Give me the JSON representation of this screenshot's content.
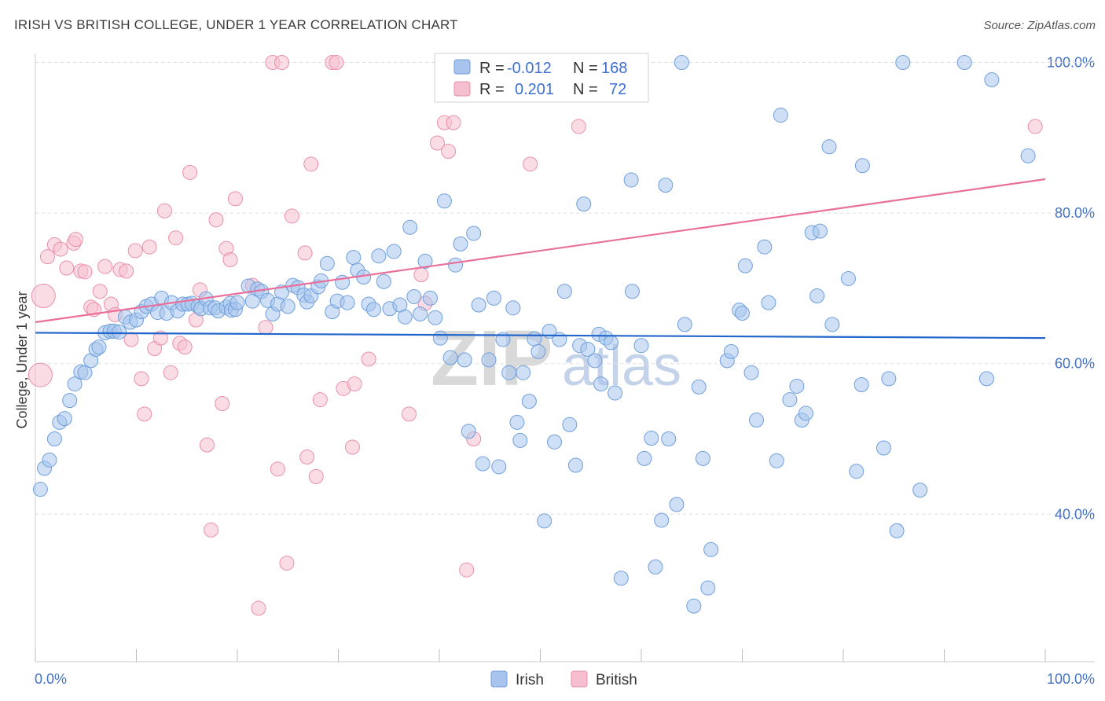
{
  "title": "IRISH VS BRITISH COLLEGE, UNDER 1 YEAR CORRELATION CHART",
  "source": "Source: ZipAtlas.com",
  "watermark": {
    "zip": "ZIP",
    "atlas": "atlas"
  },
  "legend": {
    "irish": {
      "r_label": "R =",
      "r_value": "-0.012",
      "n_label": "N =",
      "n_value": "168"
    },
    "british": {
      "r_label": "R =",
      "r_value": "0.201",
      "n_label": "N =",
      "n_value": "72"
    }
  },
  "bottom_legend": {
    "irish": "Irish",
    "british": "British"
  },
  "colors": {
    "irish_fill": "#a8c4ec",
    "irish_stroke": "#6f9fdc",
    "irish_line": "#2266cc",
    "british_fill": "#f5bfd0",
    "british_stroke": "#ea8faa",
    "british_line": "#e8709a",
    "tick_text": "#4472c4",
    "grid": "#dddddd"
  },
  "chart_data": {
    "type": "scatter",
    "title": "IRISH VS BRITISH COLLEGE, UNDER 1 YEAR CORRELATION CHART",
    "ylabel": "College, Under 1 year",
    "xlabel": "",
    "xlim": [
      0,
      100
    ],
    "ylim": [
      22,
      102
    ],
    "x_tick_labels": [
      "0.0%",
      "100.0%"
    ],
    "y_ticks": [
      40,
      60,
      80,
      100
    ],
    "y_tick_labels": [
      "40.0%",
      "60.0%",
      "80.0%",
      "100.0%"
    ],
    "grid": "horizontal dashed",
    "legend_position": "top-center",
    "series": [
      {
        "name": "Irish",
        "r": -0.012,
        "n": 168,
        "trend": {
          "x": [
            0,
            100
          ],
          "y": [
            64.1,
            63.4
          ]
        },
        "points": [
          [
            0.5,
            43.3
          ],
          [
            0.9,
            46.1
          ],
          [
            1.4,
            47.2
          ],
          [
            1.9,
            50.0
          ],
          [
            2.4,
            52.2
          ],
          [
            2.9,
            52.7
          ],
          [
            3.4,
            55.1
          ],
          [
            3.9,
            57.3
          ],
          [
            4.5,
            58.9
          ],
          [
            4.9,
            58.8
          ],
          [
            5.5,
            60.4
          ],
          [
            6.0,
            61.9
          ],
          [
            6.3,
            62.2
          ],
          [
            6.9,
            64.1
          ],
          [
            7.4,
            64.3
          ],
          [
            7.8,
            64.3
          ],
          [
            8.3,
            64.2
          ],
          [
            8.9,
            66.2
          ],
          [
            9.4,
            65.5
          ],
          [
            10.0,
            65.8
          ],
          [
            10.5,
            66.9
          ],
          [
            11.0,
            67.6
          ],
          [
            11.5,
            67.9
          ],
          [
            12.1,
            66.8
          ],
          [
            12.5,
            68.7
          ],
          [
            13.0,
            66.7
          ],
          [
            13.5,
            68.1
          ],
          [
            14.1,
            67.0
          ],
          [
            14.6,
            67.9
          ],
          [
            15.1,
            67.9
          ],
          [
            15.5,
            68.0
          ],
          [
            16.1,
            67.6
          ],
          [
            16.4,
            67.3
          ],
          [
            16.9,
            68.6
          ],
          [
            17.3,
            67.4
          ],
          [
            17.8,
            67.4
          ],
          [
            18.1,
            67.0
          ],
          [
            18.9,
            67.5
          ],
          [
            19.3,
            68.0
          ],
          [
            19.4,
            67.1
          ],
          [
            19.8,
            67.2
          ],
          [
            20.0,
            68.1
          ],
          [
            21.1,
            70.3
          ],
          [
            21.5,
            68.3
          ],
          [
            22.0,
            69.9
          ],
          [
            22.4,
            69.6
          ],
          [
            23.0,
            68.4
          ],
          [
            23.5,
            66.6
          ],
          [
            24.0,
            67.9
          ],
          [
            24.4,
            69.5
          ],
          [
            25.0,
            67.6
          ],
          [
            25.5,
            70.4
          ],
          [
            26.0,
            70.1
          ],
          [
            26.6,
            69.1
          ],
          [
            26.9,
            68.2
          ],
          [
            27.3,
            69.0
          ],
          [
            28.0,
            70.2
          ],
          [
            28.3,
            71.0
          ],
          [
            28.9,
            73.3
          ],
          [
            29.4,
            66.9
          ],
          [
            29.9,
            68.3
          ],
          [
            30.4,
            70.8
          ],
          [
            30.9,
            68.1
          ],
          [
            31.5,
            74.1
          ],
          [
            31.9,
            72.4
          ],
          [
            32.5,
            71.5
          ],
          [
            33.0,
            67.9
          ],
          [
            33.5,
            67.2
          ],
          [
            34.0,
            74.3
          ],
          [
            34.5,
            70.9
          ],
          [
            35.1,
            67.3
          ],
          [
            35.5,
            74.9
          ],
          [
            36.1,
            67.8
          ],
          [
            36.6,
            66.2
          ],
          [
            37.1,
            78.1
          ],
          [
            37.5,
            68.9
          ],
          [
            38.1,
            66.6
          ],
          [
            38.6,
            73.6
          ],
          [
            39.1,
            68.7
          ],
          [
            39.6,
            66.1
          ],
          [
            40.1,
            63.4
          ],
          [
            40.5,
            81.6
          ],
          [
            41.1,
            60.8
          ],
          [
            41.6,
            73.1
          ],
          [
            42.1,
            75.9
          ],
          [
            42.5,
            60.5
          ],
          [
            42.9,
            51.0
          ],
          [
            43.4,
            77.3
          ],
          [
            43.9,
            67.8
          ],
          [
            44.3,
            46.7
          ],
          [
            44.9,
            60.5
          ],
          [
            45.4,
            68.7
          ],
          [
            45.9,
            46.3
          ],
          [
            46.3,
            63.2
          ],
          [
            46.9,
            58.8
          ],
          [
            47.3,
            67.4
          ],
          [
            47.7,
            52.2
          ],
          [
            48.0,
            49.8
          ],
          [
            48.3,
            58.8
          ],
          [
            48.9,
            55.0
          ],
          [
            49.4,
            63.3
          ],
          [
            49.8,
            61.6
          ],
          [
            50.4,
            39.1
          ],
          [
            50.9,
            64.3
          ],
          [
            51.4,
            49.6
          ],
          [
            51.9,
            63.2
          ],
          [
            52.4,
            69.6
          ],
          [
            52.9,
            51.9
          ],
          [
            53.5,
            46.5
          ],
          [
            53.9,
            62.4
          ],
          [
            54.3,
            81.2
          ],
          [
            54.7,
            61.9
          ],
          [
            55.4,
            60.4
          ],
          [
            55.8,
            63.9
          ],
          [
            56.0,
            57.3
          ],
          [
            56.5,
            63.4
          ],
          [
            57.0,
            62.8
          ],
          [
            57.4,
            56.1
          ],
          [
            58.0,
            31.5
          ],
          [
            59.0,
            84.4
          ],
          [
            59.1,
            69.6
          ],
          [
            60.0,
            62.4
          ],
          [
            60.3,
            47.4
          ],
          [
            61.0,
            50.1
          ],
          [
            61.4,
            33.0
          ],
          [
            62.0,
            39.2
          ],
          [
            62.4,
            83.7
          ],
          [
            62.7,
            50.0
          ],
          [
            63.5,
            41.3
          ],
          [
            64.0,
            100.0
          ],
          [
            64.3,
            65.2
          ],
          [
            65.2,
            27.8
          ],
          [
            65.7,
            56.9
          ],
          [
            66.1,
            47.4
          ],
          [
            66.6,
            30.2
          ],
          [
            66.9,
            35.3
          ],
          [
            68.5,
            60.4
          ],
          [
            68.9,
            61.6
          ],
          [
            69.7,
            67.1
          ],
          [
            70.0,
            66.7
          ],
          [
            70.3,
            73.0
          ],
          [
            70.9,
            58.8
          ],
          [
            71.4,
            52.5
          ],
          [
            72.2,
            75.5
          ],
          [
            72.6,
            68.1
          ],
          [
            73.4,
            47.1
          ],
          [
            73.8,
            93.0
          ],
          [
            74.7,
            55.2
          ],
          [
            75.4,
            57.0
          ],
          [
            75.9,
            52.5
          ],
          [
            76.3,
            53.4
          ],
          [
            76.9,
            77.4
          ],
          [
            77.4,
            69.0
          ],
          [
            77.7,
            77.6
          ],
          [
            78.6,
            88.8
          ],
          [
            78.9,
            65.2
          ],
          [
            80.5,
            71.3
          ],
          [
            81.3,
            45.7
          ],
          [
            81.8,
            57.2
          ],
          [
            81.9,
            86.3
          ],
          [
            84.0,
            48.8
          ],
          [
            84.5,
            58.0
          ],
          [
            85.3,
            37.8
          ],
          [
            85.9,
            100.0
          ],
          [
            87.6,
            43.2
          ],
          [
            92.0,
            100.0
          ],
          [
            94.2,
            58.0
          ],
          [
            94.7,
            97.7
          ],
          [
            98.3,
            87.6
          ]
        ]
      },
      {
        "name": "British",
        "r": 0.201,
        "n": 72,
        "trend": {
          "x": [
            0,
            100
          ],
          "y": [
            65.5,
            84.5
          ]
        },
        "points": [
          [
            0.5,
            58.5
          ],
          [
            0.8,
            69.0
          ],
          [
            1.2,
            74.2
          ],
          [
            1.9,
            75.8
          ],
          [
            2.5,
            75.2
          ],
          [
            3.1,
            72.7
          ],
          [
            3.8,
            76.0
          ],
          [
            4.0,
            76.5
          ],
          [
            4.5,
            72.3
          ],
          [
            4.9,
            72.2
          ],
          [
            5.5,
            67.5
          ],
          [
            5.8,
            67.2
          ],
          [
            6.4,
            69.6
          ],
          [
            6.9,
            72.9
          ],
          [
            7.5,
            67.9
          ],
          [
            7.9,
            66.5
          ],
          [
            8.4,
            72.5
          ],
          [
            9.0,
            72.3
          ],
          [
            9.5,
            63.2
          ],
          [
            9.9,
            75.0
          ],
          [
            10.5,
            58.0
          ],
          [
            10.8,
            53.3
          ],
          [
            11.3,
            75.5
          ],
          [
            11.8,
            62.0
          ],
          [
            12.4,
            63.4
          ],
          [
            12.8,
            80.3
          ],
          [
            13.4,
            58.8
          ],
          [
            13.9,
            76.7
          ],
          [
            14.3,
            62.7
          ],
          [
            14.8,
            62.2
          ],
          [
            15.3,
            85.4
          ],
          [
            15.9,
            65.8
          ],
          [
            16.3,
            69.8
          ],
          [
            17.0,
            49.2
          ],
          [
            17.4,
            37.9
          ],
          [
            17.9,
            79.1
          ],
          [
            18.5,
            54.7
          ],
          [
            18.9,
            75.3
          ],
          [
            19.3,
            73.8
          ],
          [
            19.8,
            81.9
          ],
          [
            21.5,
            70.4
          ],
          [
            22.1,
            27.5
          ],
          [
            22.8,
            64.8
          ],
          [
            23.5,
            100.0
          ],
          [
            24.0,
            46.0
          ],
          [
            24.4,
            100.0
          ],
          [
            24.9,
            33.5
          ],
          [
            25.4,
            79.6
          ],
          [
            26.7,
            74.7
          ],
          [
            26.9,
            47.6
          ],
          [
            27.3,
            86.5
          ],
          [
            27.8,
            45.0
          ],
          [
            28.2,
            55.2
          ],
          [
            29.4,
            100.0
          ],
          [
            29.8,
            100.0
          ],
          [
            30.5,
            56.7
          ],
          [
            31.4,
            48.9
          ],
          [
            31.6,
            57.3
          ],
          [
            33.0,
            60.6
          ],
          [
            37.0,
            53.3
          ],
          [
            38.2,
            71.8
          ],
          [
            38.6,
            68.0
          ],
          [
            39.8,
            89.3
          ],
          [
            40.5,
            92.0
          ],
          [
            40.9,
            88.2
          ],
          [
            41.4,
            92.0
          ],
          [
            42.7,
            32.6
          ],
          [
            43.4,
            50.0
          ],
          [
            49.0,
            86.5
          ],
          [
            53.8,
            91.5
          ],
          [
            57.0,
            100.0
          ],
          [
            99.0,
            91.5
          ]
        ]
      }
    ]
  }
}
